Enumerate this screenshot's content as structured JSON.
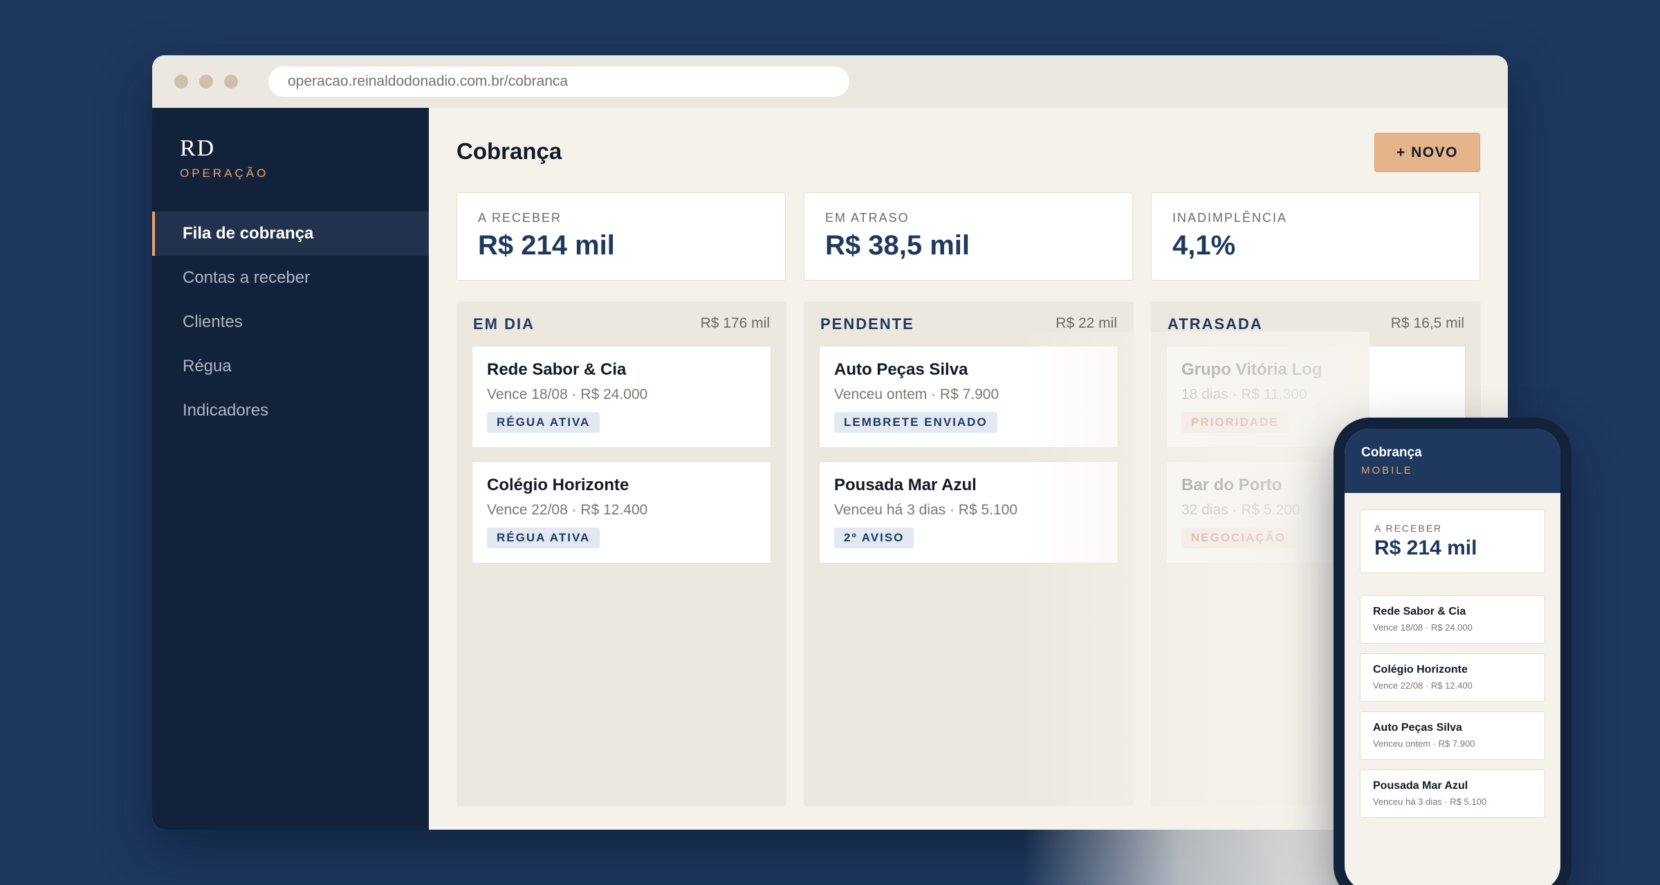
{
  "browser": {
    "url": "operacao.reinaldodonadio.com.br/cobranca"
  },
  "brand": {
    "logo": "RD",
    "subtitle": "OPERAÇÃO"
  },
  "sidebar": {
    "items": [
      {
        "label": "Fila de cobrança",
        "active": true
      },
      {
        "label": "Contas a receber"
      },
      {
        "label": "Clientes"
      },
      {
        "label": "Régua"
      },
      {
        "label": "Indicadores"
      }
    ]
  },
  "header": {
    "title": "Cobrança",
    "new_button": "+ NOVO"
  },
  "kpis": [
    {
      "label": "A RECEBER",
      "value": "R$ 214 mil"
    },
    {
      "label": "EM ATRASO",
      "value": "R$ 38,5 mil"
    },
    {
      "label": "INADIMPLÊNCIA",
      "value": "4,1%"
    }
  ],
  "columns": [
    {
      "title": "EM DIA",
      "total": "R$ 176 mil",
      "cards": [
        {
          "name": "Rede Sabor & Cia",
          "detail": "Vence 18/08 · R$ 24.000",
          "badge": "RÉGUA ATIVA",
          "badge_color": "#1e385e"
        },
        {
          "name": "Colégio Horizonte",
          "detail": "Vence 22/08 · R$ 12.400",
          "badge": "RÉGUA ATIVA",
          "badge_color": "#1e385e"
        }
      ]
    },
    {
      "title": "PENDENTE",
      "total": "R$ 22 mil",
      "cards": [
        {
          "name": "Auto Peças Silva",
          "detail": "Venceu ontem · R$ 7.900",
          "badge": "LEMBRETE ENVIADO",
          "badge_color": "#1e385e"
        },
        {
          "name": "Pousada Mar Azul",
          "detail": "Venceu há 3 dias · R$ 5.100",
          "badge": "2º AVISO",
          "badge_color": "#1e385e"
        }
      ]
    },
    {
      "title": "ATRASADA",
      "total": "R$ 16,5 mil",
      "cards": [
        {
          "name": "Grupo Vitória Log",
          "detail": "18 dias · R$ 11.300",
          "badge": "PRIORIDADE",
          "badge_color": "#b23a2f"
        },
        {
          "name": "Bar do Porto",
          "detail": "32 dias · R$ 5.200",
          "badge": "NEGOCIAÇÃO",
          "badge_color": "#b23a2f"
        }
      ]
    }
  ],
  "mobile": {
    "title": "Cobrança",
    "subtitle": "MOBILE",
    "kpi": {
      "label": "A RECEBER",
      "value": "R$ 214 mil"
    },
    "items": [
      {
        "name": "Rede Sabor & Cia",
        "detail": "Vence 18/08 · R$ 24.000"
      },
      {
        "name": "Colégio Horizonte",
        "detail": "Vence 22/08 · R$ 12.400"
      },
      {
        "name": "Auto Peças Silva",
        "detail": "Venceu ontem · R$ 7.900"
      },
      {
        "name": "Pousada Mar Azul",
        "detail": "Venceu há 3 dias · R$ 5.100"
      }
    ]
  }
}
